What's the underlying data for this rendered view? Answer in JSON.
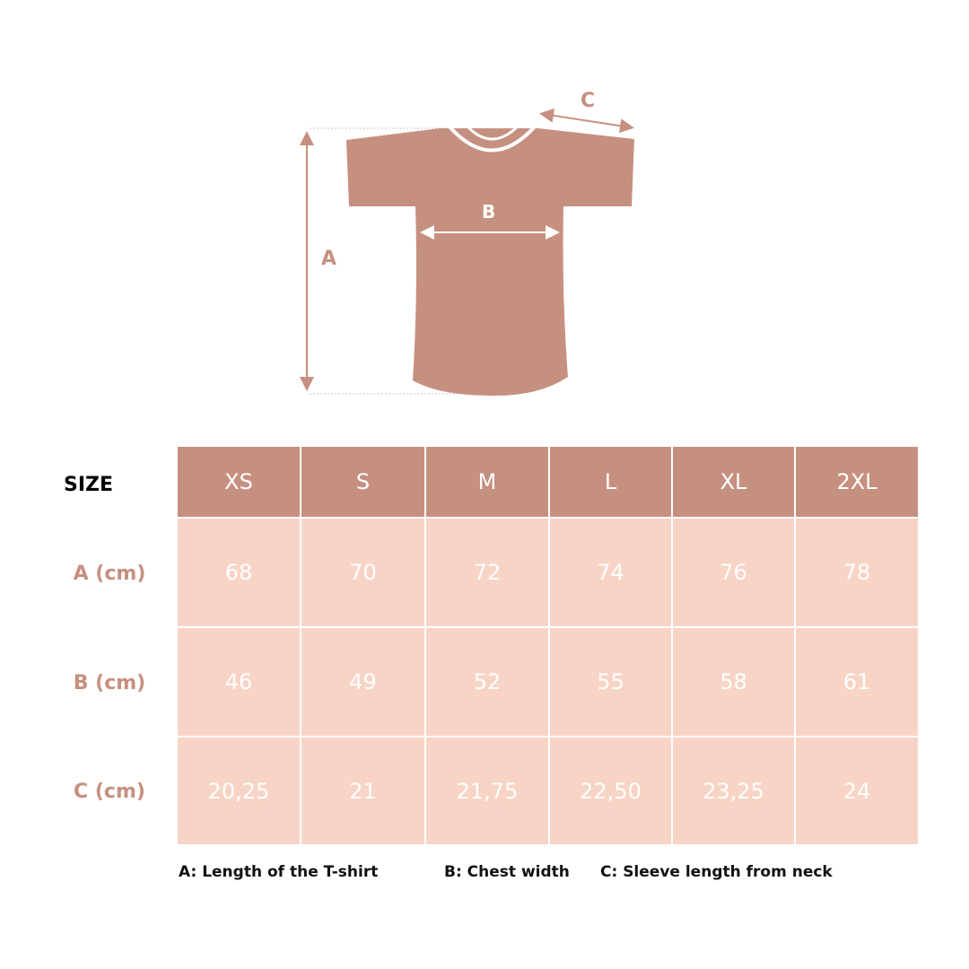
{
  "diagram": {
    "label_a": "A",
    "label_b": "B",
    "label_c": "C"
  },
  "colors": {
    "accent": "#c69080",
    "cell": "#f7d4c5"
  },
  "table": {
    "corner": "SIZE",
    "sizes": [
      "XS",
      "S",
      "M",
      "L",
      "XL",
      "2XL"
    ],
    "rows": [
      {
        "label": "A (cm)",
        "values": [
          "68",
          "70",
          "72",
          "74",
          "76",
          "78"
        ]
      },
      {
        "label": "B (cm)",
        "values": [
          "46",
          "49",
          "52",
          "55",
          "58",
          "61"
        ]
      },
      {
        "label": "C (cm)",
        "values": [
          "20,25",
          "21",
          "21,75",
          "22,50",
          "23,25",
          "24"
        ]
      }
    ]
  },
  "legend": [
    "A: Length of the T-shirt",
    "B: Chest width",
    "C: Sleeve length from neck"
  ]
}
